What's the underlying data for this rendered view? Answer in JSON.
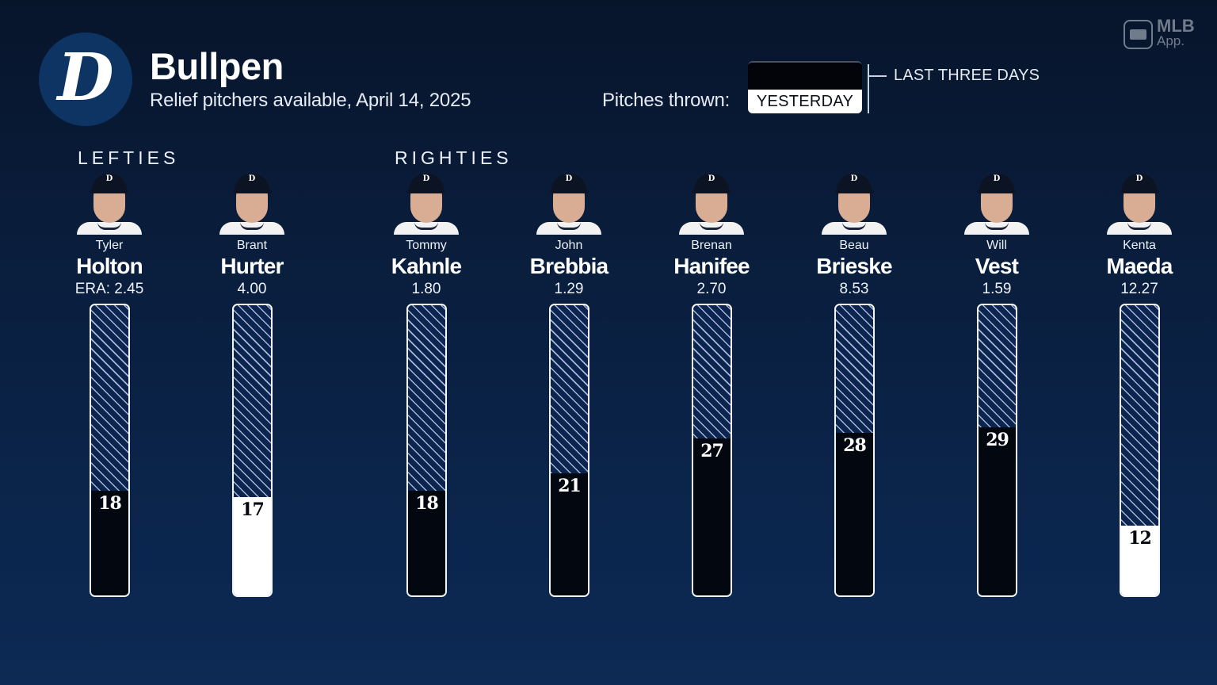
{
  "header": {
    "team_logo_glyph": "D",
    "title": "Bullpen",
    "subtitle": "Relief pitchers available, April 14, 2025"
  },
  "legend": {
    "label": "Pitches thrown:",
    "yesterday": "YESTERDAY",
    "last_three_days": "LAST THREE DAYS",
    "colors": {
      "last_three_days": "#03070f",
      "yesterday": "#ffffff",
      "remaining_hatch_bg": "#0c2550",
      "hatch_line": "#a9b8d3"
    }
  },
  "brand": {
    "mlb": "MLB",
    "app": "App."
  },
  "sections": {
    "lefties": "LEFTIES",
    "righties": "RIGHTIES"
  },
  "players": [
    {
      "first": "Tyler",
      "last": "Holton",
      "era": "ERA: 2.45",
      "pitches": "18",
      "fill": "dark",
      "hand": "L"
    },
    {
      "first": "Brant",
      "last": "Hurter",
      "era": "4.00",
      "pitches": "17",
      "fill": "light",
      "hand": "L"
    },
    {
      "first": "Tommy",
      "last": "Kahnle",
      "era": "1.80",
      "pitches": "18",
      "fill": "dark",
      "hand": "R"
    },
    {
      "first": "John",
      "last": "Brebbia",
      "era": "1.29",
      "pitches": "21",
      "fill": "dark",
      "hand": "R"
    },
    {
      "first": "Brenan",
      "last": "Hanifee",
      "era": "2.70",
      "pitches": "27",
      "fill": "dark",
      "hand": "R"
    },
    {
      "first": "Beau",
      "last": "Brieske",
      "era": "8.53",
      "pitches": "28",
      "fill": "dark",
      "hand": "R"
    },
    {
      "first": "Will",
      "last": "Vest",
      "era": "1.59",
      "pitches": "29",
      "fill": "dark",
      "hand": "R"
    },
    {
      "first": "Kenta",
      "last": "Maeda",
      "era": "12.27",
      "pitches": "12",
      "fill": "light",
      "hand": "R"
    }
  ],
  "chart_data": {
    "type": "bar",
    "title": "Bullpen",
    "subtitle": "Relief pitchers available, April 14, 2025",
    "categories": [
      "Tyler Holton",
      "Brant Hurter",
      "Tommy Kahnle",
      "John Brebbia",
      "Brenan Hanifee",
      "Beau Brieske",
      "Will Vest",
      "Kenta Maeda"
    ],
    "groups": {
      "LEFTIES": [
        "Tyler Holton",
        "Brant Hurter"
      ],
      "RIGHTIES": [
        "Tommy Kahnle",
        "John Brebbia",
        "Brenan Hanifee",
        "Beau Brieske",
        "Will Vest",
        "Kenta Maeda"
      ]
    },
    "era": [
      2.45,
      4.0,
      1.8,
      1.29,
      2.7,
      8.53,
      1.59,
      12.27
    ],
    "series": [
      {
        "name": "Pitches thrown",
        "values": [
          18,
          17,
          18,
          21,
          27,
          28,
          29,
          12
        ]
      }
    ],
    "period": [
      "LAST THREE DAYS",
      "YESTERDAY",
      "LAST THREE DAYS",
      "LAST THREE DAYS",
      "LAST THREE DAYS",
      "LAST THREE DAYS",
      "LAST THREE DAYS",
      "YESTERDAY"
    ],
    "legend": [
      "YESTERDAY",
      "LAST THREE DAYS"
    ],
    "legend_position": "top-right",
    "xlabel": "",
    "ylabel": "Pitches thrown",
    "ylim": [
      0,
      50
    ],
    "grid": false,
    "orientation": "vertical"
  }
}
